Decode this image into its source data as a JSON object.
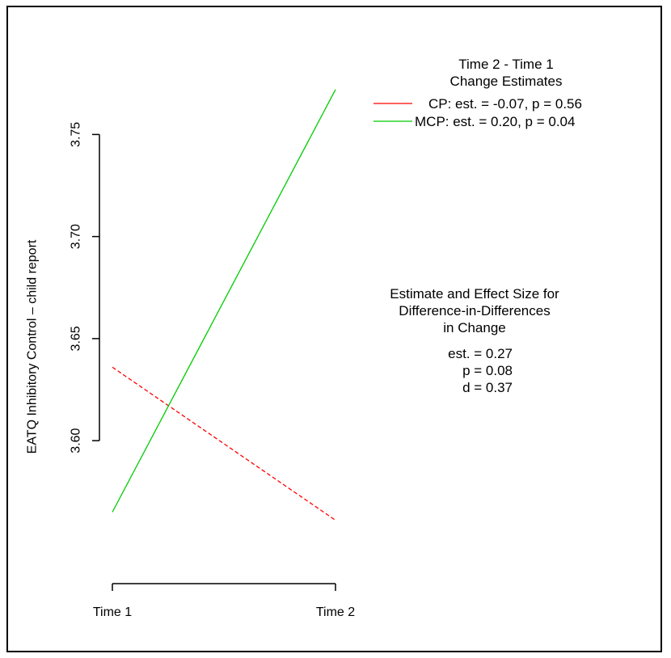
{
  "chart_data": {
    "type": "line",
    "categories": [
      "Time 1",
      "Time 2"
    ],
    "ylabel": "EATQ Inhibitory Control – child report",
    "y_ticks": [
      "3.60",
      "3.65",
      "3.70",
      "3.75"
    ],
    "y_tick_values": [
      3.6,
      3.65,
      3.7,
      3.75
    ],
    "ylim": [
      3.545,
      3.785
    ],
    "series": [
      {
        "name": "CP",
        "values": [
          3.636,
          3.561
        ],
        "color": "#ff0000",
        "style": "dashed"
      },
      {
        "name": "MCP",
        "values": [
          3.565,
          3.772
        ],
        "color": "#00cc00",
        "style": "solid"
      }
    ],
    "legend": {
      "title_line1": "Time 2 - Time 1",
      "title_line2": "Change Estimates",
      "entries": [
        {
          "label": "CP: est. = -0.07, p = 0.56",
          "color": "#ff0000"
        },
        {
          "label": "MCP: est. =  0.20, p = 0.04",
          "color": "#00cc00"
        }
      ],
      "placement": "top-right"
    },
    "annotation": {
      "line1": "Estimate and Effect Size for",
      "line2": "Difference-in-Differences",
      "line3": "in Change",
      "est": "est. =  0.27",
      "p": "p =  0.08",
      "d": "d =  0.37"
    },
    "grid": false
  }
}
